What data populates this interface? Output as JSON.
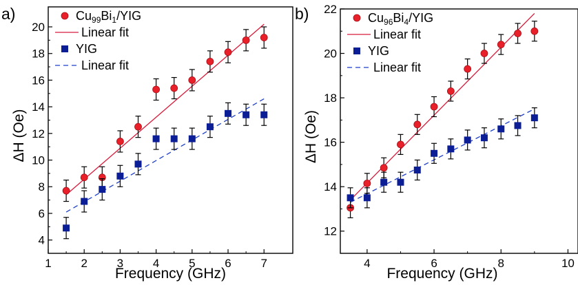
{
  "chart_data": [
    {
      "panel_label": "a)",
      "type": "scatter",
      "xlabel": "Frequency (GHz)",
      "ylabel": "ΔH (Oe)",
      "xlim": [
        1,
        7.8
      ],
      "ylim": [
        3,
        21.5
      ],
      "xticks": [
        1,
        2,
        3,
        4,
        5,
        6,
        7
      ],
      "yticks": [
        4,
        6,
        8,
        10,
        12,
        14,
        16,
        18,
        20
      ],
      "legend_position": "top-left",
      "series": [
        {
          "name": "Cu99Bi1/YIG",
          "name_parts": [
            [
              "Cu",
              ""
            ],
            [
              "99",
              "sub"
            ],
            [
              "Bi",
              ""
            ],
            [
              "1",
              "sub"
            ],
            [
              "/YIG",
              ""
            ]
          ],
          "marker": "circle",
          "color": "#e8202a",
          "x": [
            1.5,
            2.0,
            2.5,
            3.0,
            3.5,
            4.0,
            4.5,
            5.0,
            5.5,
            6.0,
            6.5,
            7.0
          ],
          "y": [
            7.7,
            8.7,
            8.7,
            11.4,
            12.5,
            15.3,
            15.4,
            16.0,
            17.4,
            18.1,
            19.0,
            19.2
          ],
          "yerr": 0.8
        },
        {
          "name": "Linear fit",
          "line": "solid",
          "color": "#d81b3c",
          "x": [
            1.5,
            7.0
          ],
          "y": [
            7.4,
            20.2
          ]
        },
        {
          "name": "YIG",
          "marker": "square",
          "color": "#0c1e96",
          "x": [
            1.5,
            2.0,
            2.5,
            3.0,
            3.5,
            4.0,
            4.5,
            5.0,
            5.5,
            6.0,
            6.5,
            7.0
          ],
          "y": [
            4.9,
            6.9,
            7.8,
            8.8,
            9.7,
            11.6,
            11.6,
            11.6,
            12.5,
            13.5,
            13.4,
            13.4
          ],
          "yerr": 0.8
        },
        {
          "name": "Linear fit",
          "line": "dashed",
          "color": "#1f3fc8",
          "x": [
            1.5,
            7.0
          ],
          "y": [
            6.1,
            14.6
          ]
        }
      ]
    },
    {
      "panel_label": "b)",
      "type": "scatter",
      "xlabel": "Frequency (GHz)",
      "ylabel": "ΔH (Oe)",
      "xlim": [
        3.2,
        10.3
      ],
      "ylim": [
        11,
        22
      ],
      "xticks": [
        4,
        6,
        8,
        10
      ],
      "yticks": [
        12,
        14,
        16,
        18,
        20,
        22
      ],
      "legend_position": "top-left",
      "series": [
        {
          "name": "Cu96Bi4/YIG",
          "name_parts": [
            [
              "Cu",
              ""
            ],
            [
              "96",
              "sub"
            ],
            [
              "Bi",
              ""
            ],
            [
              "4",
              "sub"
            ],
            [
              "/YIG",
              ""
            ]
          ],
          "marker": "circle",
          "color": "#e8202a",
          "x": [
            3.5,
            4.0,
            4.5,
            5.0,
            5.5,
            6.0,
            6.5,
            7.0,
            7.5,
            8.0,
            8.5,
            9.0
          ],
          "y": [
            13.05,
            14.15,
            14.85,
            15.9,
            16.8,
            17.6,
            18.3,
            19.3,
            20.0,
            20.4,
            20.9,
            21.0
          ],
          "yerr": 0.45
        },
        {
          "name": "Linear fit",
          "line": "solid",
          "color": "#d81b3c",
          "x": [
            3.5,
            9.0
          ],
          "y": [
            13.4,
            21.8
          ]
        },
        {
          "name": "YIG",
          "marker": "square",
          "color": "#0c1e96",
          "x": [
            3.5,
            4.0,
            4.5,
            5.0,
            5.5,
            6.0,
            6.5,
            7.0,
            7.5,
            8.0,
            8.5,
            9.0
          ],
          "y": [
            13.5,
            13.5,
            14.2,
            14.2,
            14.75,
            15.5,
            15.7,
            16.1,
            16.2,
            16.6,
            16.75,
            17.1
          ],
          "yerr": 0.45
        },
        {
          "name": "Linear fit",
          "line": "dashed",
          "color": "#1f3fc8",
          "x": [
            3.5,
            9.0
          ],
          "y": [
            13.3,
            17.5
          ]
        }
      ]
    }
  ]
}
